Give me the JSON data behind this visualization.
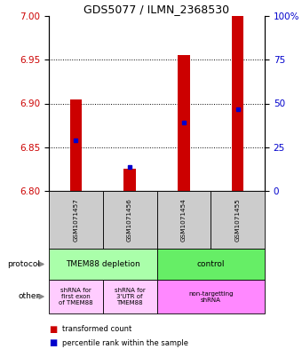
{
  "title": "GDS5077 / ILMN_2368530",
  "samples": [
    "GSM1071457",
    "GSM1071456",
    "GSM1071454",
    "GSM1071455"
  ],
  "bar_values": [
    6.905,
    6.825,
    6.955,
    7.0
  ],
  "bar_bottom": 6.8,
  "blue_marker_values": [
    6.858,
    6.827,
    6.878,
    6.893
  ],
  "ylim": [
    6.8,
    7.0
  ],
  "yticks_left": [
    6.8,
    6.85,
    6.9,
    6.95,
    7.0
  ],
  "yticks_right_vals": [
    0,
    25,
    50,
    75,
    100
  ],
  "yticks_right_labels": [
    "0",
    "25",
    "50",
    "75",
    "100%"
  ],
  "left_color": "#cc0000",
  "right_color": "#0000cc",
  "bar_color": "#cc0000",
  "blue_color": "#0000cc",
  "grid_dotted_vals": [
    6.85,
    6.9,
    6.95
  ],
  "protocol_labels": [
    "TMEM88 depletion",
    "control"
  ],
  "protocol_colors": [
    "#aaffaa",
    "#66ee66"
  ],
  "other_labels": [
    "shRNA for\nfirst exon\nof TMEM88",
    "shRNA for\n3'UTR of\nTMEM88",
    "non-targetting\nshRNA"
  ],
  "other_colors": [
    "#ffccff",
    "#ffccff",
    "#ff88ff"
  ],
  "legend_red": "transformed count",
  "legend_blue": "percentile rank within the sample",
  "sample_bg": "#cccccc",
  "bar_width": 0.22
}
